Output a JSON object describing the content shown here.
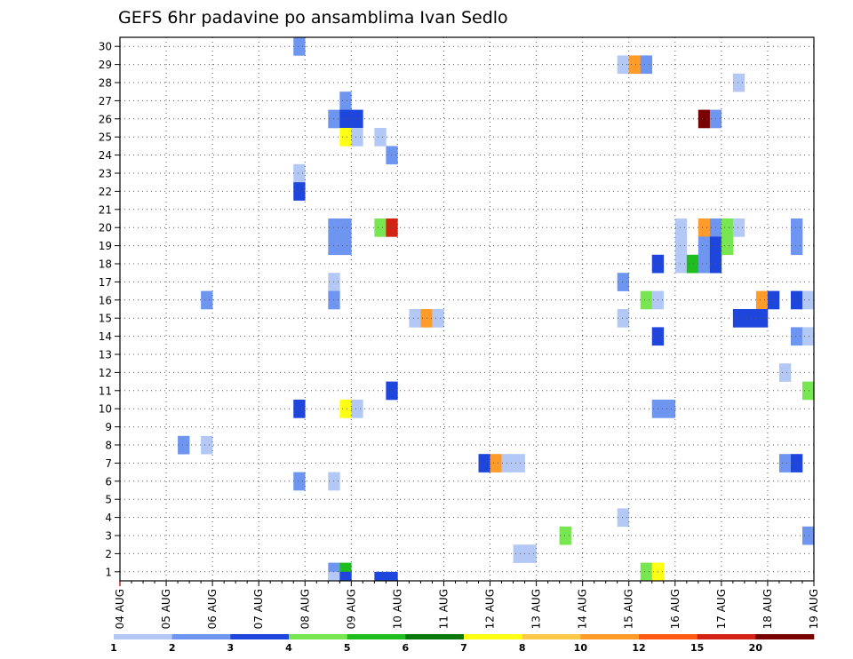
{
  "chart_data": {
    "type": "heatmap",
    "title": "GEFS 6hr padavine po ansamblima Ivan Sedlo",
    "xlabel": "",
    "ylabel": "",
    "x_tick_labels": [
      "04 AUG",
      "05 AUG",
      "06 AUG",
      "07 AUG",
      "08 AUG",
      "09 AUG",
      "10 AUG",
      "11 AUG",
      "12 AUG",
      "13 AUG",
      "14 AUG",
      "15 AUG",
      "16 AUG",
      "17 AUG",
      "18 AUG",
      "19 AUG"
    ],
    "y_tick_labels": [
      "1",
      "2",
      "3",
      "4",
      "5",
      "6",
      "7",
      "8",
      "9",
      "10",
      "11",
      "12",
      "13",
      "14",
      "15",
      "16",
      "17",
      "18",
      "19",
      "20",
      "21",
      "22",
      "23",
      "24",
      "25",
      "26",
      "27",
      "28",
      "29",
      "30"
    ],
    "grid": true,
    "legend_placement": "bottom",
    "colorbar": {
      "labels": [
        "1",
        "2",
        "3",
        "4",
        "5",
        "6",
        "7",
        "8",
        "10",
        "12",
        "15",
        "20"
      ],
      "colors": [
        "#b4c8f5",
        "#6e96f0",
        "#1e46dc",
        "#78e650",
        "#1ebe1e",
        "#0a780a",
        "#ffff14",
        "#ffc846",
        "#ff9b28",
        "#ff5a14",
        "#d22314",
        "#780000"
      ]
    },
    "cells_note_units": "day = days after 04 AUG 00Z at 6-hour step start, member = ensemble member, level = color class index 0-11",
    "cells": [
      {
        "day": 3.75,
        "member": 30,
        "level": 1
      },
      {
        "day": 10.75,
        "member": 29,
        "level": 0
      },
      {
        "day": 11.0,
        "member": 29,
        "level": 8
      },
      {
        "day": 11.25,
        "member": 29,
        "level": 1
      },
      {
        "day": 13.25,
        "member": 28,
        "level": 0
      },
      {
        "day": 4.75,
        "member": 27,
        "level": 1
      },
      {
        "day": 4.5,
        "member": 26,
        "level": 1
      },
      {
        "day": 4.75,
        "member": 26,
        "level": 2
      },
      {
        "day": 5.0,
        "member": 26,
        "level": 2
      },
      {
        "day": 12.5,
        "member": 26,
        "level": 11
      },
      {
        "day": 12.75,
        "member": 26,
        "level": 1
      },
      {
        "day": 4.75,
        "member": 25,
        "level": 6
      },
      {
        "day": 5.0,
        "member": 25,
        "level": 0
      },
      {
        "day": 5.5,
        "member": 25,
        "level": 0
      },
      {
        "day": 5.75,
        "member": 24,
        "level": 1
      },
      {
        "day": 3.75,
        "member": 23,
        "level": 0
      },
      {
        "day": 3.75,
        "member": 22,
        "level": 2
      },
      {
        "day": 4.5,
        "member": 20,
        "level": 1
      },
      {
        "day": 4.75,
        "member": 20,
        "level": 1
      },
      {
        "day": 5.5,
        "member": 20,
        "level": 3
      },
      {
        "day": 5.75,
        "member": 20,
        "level": 10
      },
      {
        "day": 12.0,
        "member": 20,
        "level": 0
      },
      {
        "day": 12.5,
        "member": 20,
        "level": 8
      },
      {
        "day": 12.75,
        "member": 20,
        "level": 1
      },
      {
        "day": 13.0,
        "member": 20,
        "level": 3
      },
      {
        "day": 13.25,
        "member": 20,
        "level": 0
      },
      {
        "day": 14.5,
        "member": 20,
        "level": 1
      },
      {
        "day": 4.5,
        "member": 19,
        "level": 1
      },
      {
        "day": 4.75,
        "member": 19,
        "level": 1
      },
      {
        "day": 12.0,
        "member": 19,
        "level": 0
      },
      {
        "day": 12.5,
        "member": 19,
        "level": 1
      },
      {
        "day": 12.75,
        "member": 19,
        "level": 2
      },
      {
        "day": 13.0,
        "member": 19,
        "level": 3
      },
      {
        "day": 14.5,
        "member": 19,
        "level": 1
      },
      {
        "day": 11.5,
        "member": 18,
        "level": 2
      },
      {
        "day": 12.0,
        "member": 18,
        "level": 0
      },
      {
        "day": 12.25,
        "member": 18,
        "level": 4
      },
      {
        "day": 12.5,
        "member": 18,
        "level": 1
      },
      {
        "day": 12.75,
        "member": 18,
        "level": 2
      },
      {
        "day": 4.5,
        "member": 17,
        "level": 0
      },
      {
        "day": 10.75,
        "member": 17,
        "level": 1
      },
      {
        "day": 1.75,
        "member": 16,
        "level": 1
      },
      {
        "day": 4.5,
        "member": 16,
        "level": 1
      },
      {
        "day": 11.25,
        "member": 16,
        "level": 3
      },
      {
        "day": 11.5,
        "member": 16,
        "level": 0
      },
      {
        "day": 13.75,
        "member": 16,
        "level": 8
      },
      {
        "day": 14.0,
        "member": 16,
        "level": 2
      },
      {
        "day": 14.5,
        "member": 16,
        "level": 2
      },
      {
        "day": 14.75,
        "member": 16,
        "level": 0
      },
      {
        "day": 6.25,
        "member": 15,
        "level": 0
      },
      {
        "day": 6.5,
        "member": 15,
        "level": 8
      },
      {
        "day": 6.75,
        "member": 15,
        "level": 0
      },
      {
        "day": 10.75,
        "member": 15,
        "level": 0
      },
      {
        "day": 13.25,
        "member": 15,
        "level": 2
      },
      {
        "day": 13.5,
        "member": 15,
        "level": 2
      },
      {
        "day": 13.75,
        "member": 15,
        "level": 2
      },
      {
        "day": 11.5,
        "member": 14,
        "level": 2
      },
      {
        "day": 14.5,
        "member": 14,
        "level": 1
      },
      {
        "day": 14.75,
        "member": 14,
        "level": 0
      },
      {
        "day": 14.25,
        "member": 12,
        "level": 0
      },
      {
        "day": 5.75,
        "member": 11,
        "level": 2
      },
      {
        "day": 14.75,
        "member": 11,
        "level": 3
      },
      {
        "day": 3.75,
        "member": 10,
        "level": 2
      },
      {
        "day": 4.75,
        "member": 10,
        "level": 6
      },
      {
        "day": 5.0,
        "member": 10,
        "level": 0
      },
      {
        "day": 11.5,
        "member": 10,
        "level": 1
      },
      {
        "day": 11.75,
        "member": 10,
        "level": 1
      },
      {
        "day": 1.25,
        "member": 8,
        "level": 1
      },
      {
        "day": 1.75,
        "member": 8,
        "level": 0
      },
      {
        "day": 7.75,
        "member": 7,
        "level": 2
      },
      {
        "day": 8.0,
        "member": 7,
        "level": 8
      },
      {
        "day": 8.25,
        "member": 7,
        "level": 0
      },
      {
        "day": 8.5,
        "member": 7,
        "level": 0
      },
      {
        "day": 14.25,
        "member": 7,
        "level": 1
      },
      {
        "day": 14.5,
        "member": 7,
        "level": 2
      },
      {
        "day": 3.75,
        "member": 6,
        "level": 1
      },
      {
        "day": 4.5,
        "member": 6,
        "level": 0
      },
      {
        "day": 10.75,
        "member": 4,
        "level": 0
      },
      {
        "day": 9.5,
        "member": 3,
        "level": 3
      },
      {
        "day": 14.75,
        "member": 3,
        "level": 1
      },
      {
        "day": 8.5,
        "member": 2,
        "level": 0
      },
      {
        "day": 8.75,
        "member": 2,
        "level": 0
      },
      {
        "day": 4.5,
        "member": 1,
        "level": 1
      },
      {
        "day": 4.75,
        "member": 1,
        "level": 4
      },
      {
        "day": 11.25,
        "member": 1,
        "level": 3
      },
      {
        "day": 11.5,
        "member": 1,
        "level": 6
      },
      {
        "day": 4.5,
        "member": 0.5,
        "level": 0
      },
      {
        "day": 4.75,
        "member": 0.5,
        "level": 2
      },
      {
        "day": 5.5,
        "member": 0.5,
        "level": 2
      },
      {
        "day": 5.75,
        "member": 0.5,
        "level": 2
      }
    ]
  }
}
